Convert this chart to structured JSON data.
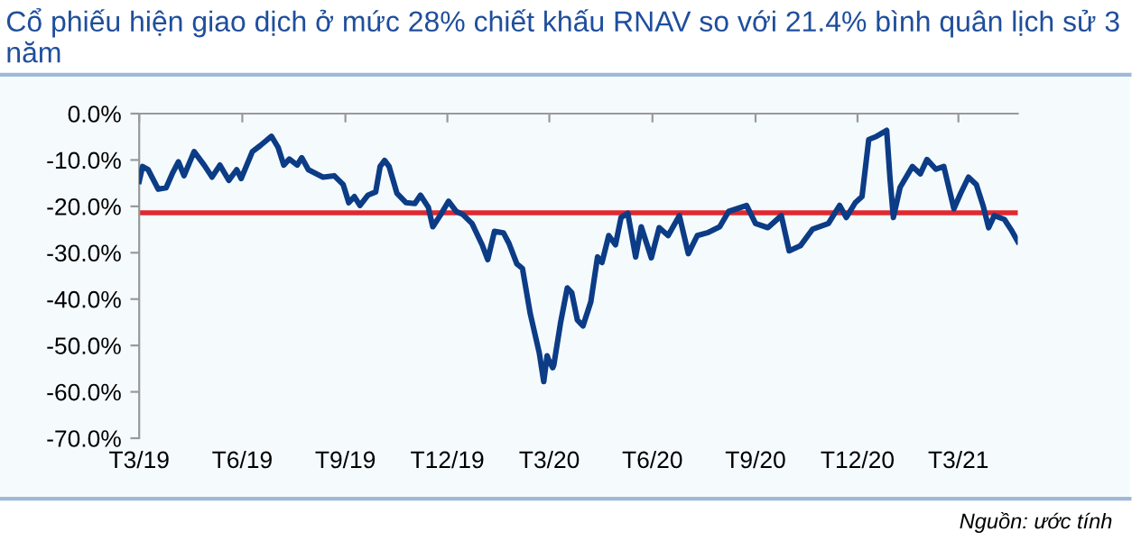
{
  "chart_data": {
    "type": "line",
    "title": "Cổ phiếu hiện giao dịch ở mức 28% chiết khấu RNAV so với 21.4% bình quân lịch sử 3 năm",
    "annotations": [
      "Nguồn: ước tính"
    ],
    "x": [
      "2019-03-01",
      "2019-03-04",
      "2019-03-09",
      "2019-03-18",
      "2019-03-25",
      "2019-03-31",
      "2019-04-05",
      "2019-04-10",
      "2019-04-19",
      "2019-04-28",
      "2019-05-05",
      "2019-05-12",
      "2019-05-20",
      "2019-05-27",
      "2019-05-31",
      "2019-06-10",
      "2019-06-17",
      "2019-06-27",
      "2019-07-03",
      "2019-07-08",
      "2019-07-13",
      "2019-07-20",
      "2019-07-24",
      "2019-07-30",
      "2019-08-12",
      "2019-08-22",
      "2019-08-30",
      "2019-09-04",
      "2019-09-09",
      "2019-09-14",
      "2019-09-21",
      "2019-09-28",
      "2019-10-02",
      "2019-10-06",
      "2019-10-10",
      "2019-10-17",
      "2019-10-25",
      "2019-11-02",
      "2019-11-07",
      "2019-11-14",
      "2019-11-18",
      "2019-11-25",
      "2019-12-02",
      "2019-12-09",
      "2019-12-15",
      "2019-12-23",
      "2020-01-01",
      "2020-01-06",
      "2020-01-12",
      "2020-01-20",
      "2020-01-25",
      "2020-02-01",
      "2020-02-06",
      "2020-02-13",
      "2020-02-21",
      "2020-02-25",
      "2020-02-28",
      "2020-02-29",
      "2020-03-04",
      "2020-03-05",
      "2020-03-11",
      "2020-03-17",
      "2020-03-21",
      "2020-03-26",
      "2020-03-31",
      "2020-04-07",
      "2020-04-13",
      "2020-04-17",
      "2020-04-23",
      "2020-04-29",
      "2020-05-04",
      "2020-05-10",
      "2020-05-17",
      "2020-05-22",
      "2020-05-31",
      "2020-06-07",
      "2020-06-15",
      "2020-06-25",
      "2020-07-03",
      "2020-07-11",
      "2020-07-20",
      "2020-07-31",
      "2020-08-08",
      "2020-08-24",
      "2020-09-01",
      "2020-09-12",
      "2020-09-24",
      "2020-10-01",
      "2020-10-11",
      "2020-10-22",
      "2020-11-05",
      "2020-11-15",
      "2020-11-21",
      "2020-11-29",
      "2020-12-05",
      "2020-12-11",
      "2020-12-18",
      "2020-12-27",
      "2020-12-30",
      "2021-01-02",
      "2021-01-08",
      "2021-01-19",
      "2021-01-26",
      "2021-02-01",
      "2021-02-09",
      "2021-02-16",
      "2021-02-25",
      "2021-03-03",
      "2021-03-10",
      "2021-03-17",
      "2021-03-23",
      "2021-03-28",
      "2021-04-02",
      "2021-04-11",
      "2021-04-17",
      "2021-04-23"
    ],
    "series": [
      {
        "color": "#0c3c86",
        "values": [
          -14.6,
          -11.4,
          -12.1,
          -16.3,
          -16,
          -12.7,
          -10.4,
          -13.4,
          -8.2,
          -11.1,
          -13.7,
          -11.1,
          -14.4,
          -12.1,
          -14,
          -8.2,
          -6.9,
          -4.9,
          -7.3,
          -11.1,
          -9.8,
          -11.1,
          -9.5,
          -12.1,
          -13.7,
          -13.4,
          -15.3,
          -19.2,
          -17.9,
          -19.8,
          -17.6,
          -16.9,
          -11.4,
          -10.1,
          -11.4,
          -17.2,
          -19.2,
          -19.4,
          -17.6,
          -20.2,
          -24.4,
          -21.8,
          -18.9,
          -21.1,
          -21.8,
          -23.7,
          -28.3,
          -31.5,
          -25.4,
          -25.7,
          -28,
          -32.4,
          -33.4,
          -43.2,
          -51.6,
          -57.8,
          -52.2,
          -52.9,
          -54.8,
          -54.2,
          -45.1,
          -37.6,
          -38.6,
          -44.5,
          -45.8,
          -40.6,
          -30.9,
          -32.1,
          -26.3,
          -28.3,
          -22.4,
          -21.5,
          -30.9,
          -24.4,
          -31.1,
          -24.6,
          -26.3,
          -22,
          -30.2,
          -26.3,
          -25.7,
          -24.4,
          -21.1,
          -19.8,
          -23.7,
          -24.6,
          -22,
          -29.6,
          -28.5,
          -24.9,
          -23.7,
          -19.8,
          -22.4,
          -19.2,
          -17.9,
          -5.6,
          -4.9,
          -3.6,
          -14,
          -22.4,
          -15.9,
          -11.4,
          -13,
          -9.9,
          -12,
          -11.4,
          -20.5,
          -17.2,
          -13.7,
          -15.3,
          -19.8,
          -24.6,
          -22,
          -22.8,
          -25,
          -27.6
        ]
      }
    ],
    "xlim": [
      "2019-03-01",
      "2021-04-23"
    ],
    "xticks": [
      {
        "value": "2019-03-01",
        "label": "T3/19"
      },
      {
        "value": "2019-06-01",
        "label": "T6/19"
      },
      {
        "value": "2019-09-01",
        "label": "T9/19"
      },
      {
        "value": "2019-12-01",
        "label": "T12/19"
      },
      {
        "value": "2020-03-01",
        "label": "T3/20"
      },
      {
        "value": "2020-06-01",
        "label": "T6/20"
      },
      {
        "value": "2020-09-01",
        "label": "T9/20"
      },
      {
        "value": "2020-12-01",
        "label": "T12/20"
      },
      {
        "value": "2021-03-01",
        "label": "T3/21"
      }
    ],
    "ylim": [
      -70,
      0
    ],
    "yticks": [
      {
        "value": 0,
        "label": "0.0%"
      },
      {
        "value": -10,
        "label": "-10.0%"
      },
      {
        "value": -20,
        "label": "-20.0%"
      },
      {
        "value": -30,
        "label": "-30.0%"
      },
      {
        "value": -40,
        "label": "-40.0%"
      },
      {
        "value": -50,
        "label": "-50.0%"
      },
      {
        "value": -60,
        "label": "-60.0%"
      },
      {
        "value": -70,
        "label": "-70.0%"
      }
    ],
    "ref_lines": [
      {
        "axis": "y",
        "value": -21.4,
        "color": "#e0282e"
      }
    ],
    "grid": false,
    "legend": false
  }
}
